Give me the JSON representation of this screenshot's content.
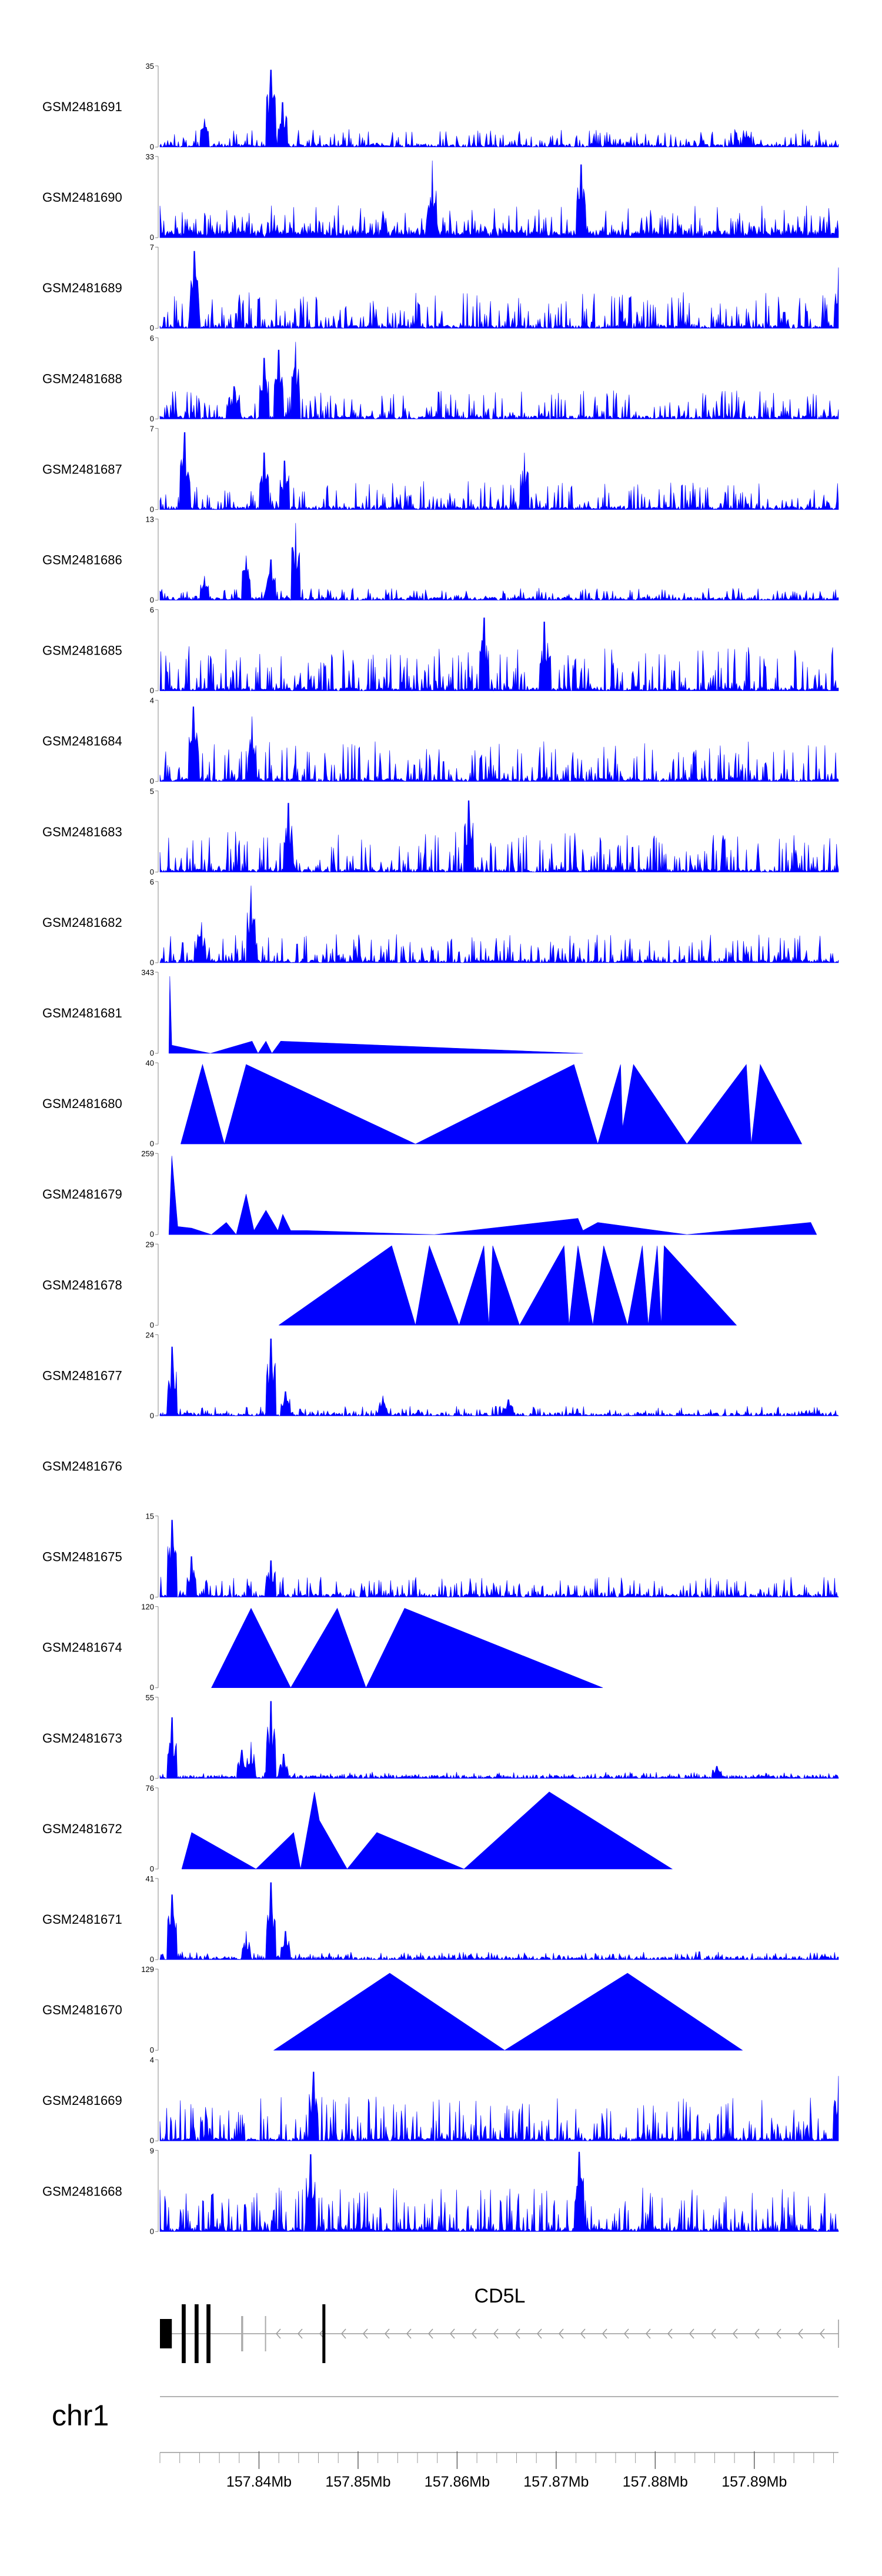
{
  "chart_data": {
    "type": "area",
    "chromosome": "chr1",
    "x_range_mb": [
      157.83,
      157.8985
    ],
    "x_ticks_mb": [
      157.84,
      157.85,
      157.86,
      157.87,
      157.88,
      157.89
    ],
    "x_tick_labels": [
      "157.84Mb",
      "157.85Mb",
      "157.86Mb",
      "157.87Mb",
      "157.88Mb",
      "157.89Mb"
    ],
    "gene": {
      "name": "CD5L",
      "strand": "-",
      "start_mb": 157.83,
      "end_mb": 157.8985,
      "exons_mb": [
        [
          157.83,
          157.8312
        ],
        [
          157.8322,
          157.8326
        ],
        [
          157.8335,
          157.8339
        ],
        [
          157.8347,
          157.8351
        ],
        [
          157.8382,
          157.8384
        ],
        [
          157.8406,
          157.8407
        ],
        [
          157.8464,
          157.8467
        ]
      ]
    },
    "tracks": [
      {
        "name": "GSM2481691",
        "ymax": 35,
        "pattern": "dense",
        "noise": 0.22,
        "peaks": [
          {
            "x": 157.8345,
            "h": 0.35
          },
          {
            "x": 157.8412,
            "h": 0.95
          },
          {
            "x": 157.8424,
            "h": 0.55
          },
          {
            "x": 157.8892,
            "h": 0.2
          }
        ]
      },
      {
        "name": "GSM2481690",
        "ymax": 33,
        "pattern": "sawtooth",
        "noise": 0.28,
        "peaks": [
          {
            "x": 157.8575,
            "h": 0.95
          },
          {
            "x": 157.8725,
            "h": 0.9
          }
        ]
      },
      {
        "name": "GSM2481689",
        "ymax": 7,
        "pattern": "dense",
        "noise": 0.45,
        "peaks": [
          {
            "x": 157.8335,
            "h": 0.95
          },
          {
            "x": 157.8985,
            "h": 0.75
          }
        ]
      },
      {
        "name": "GSM2481688",
        "ymax": 6,
        "pattern": "dense",
        "noise": 0.35,
        "peaks": [
          {
            "x": 157.8375,
            "h": 0.4
          },
          {
            "x": 157.8405,
            "h": 0.75
          },
          {
            "x": 157.842,
            "h": 0.85
          },
          {
            "x": 157.8437,
            "h": 0.95
          }
        ]
      },
      {
        "name": "GSM2481687",
        "ymax": 7,
        "pattern": "dense",
        "noise": 0.35,
        "peaks": [
          {
            "x": 157.8325,
            "h": 0.95
          },
          {
            "x": 157.8405,
            "h": 0.7
          },
          {
            "x": 157.8426,
            "h": 0.6
          },
          {
            "x": 157.8668,
            "h": 0.7
          }
        ]
      },
      {
        "name": "GSM2481686",
        "ymax": 13,
        "pattern": "dense",
        "noise": 0.15,
        "peaks": [
          {
            "x": 157.8345,
            "h": 0.3
          },
          {
            "x": 157.8387,
            "h": 0.55
          },
          {
            "x": 157.8412,
            "h": 0.5
          },
          {
            "x": 157.8437,
            "h": 0.95
          }
        ]
      },
      {
        "name": "GSM2481685",
        "ymax": 6,
        "pattern": "dense",
        "noise": 0.55,
        "peaks": [
          {
            "x": 157.8627,
            "h": 0.9
          },
          {
            "x": 157.8688,
            "h": 0.85
          }
        ]
      },
      {
        "name": "GSM2481684",
        "ymax": 4,
        "pattern": "dense",
        "noise": 0.5,
        "peaks": [
          {
            "x": 157.8334,
            "h": 0.92
          },
          {
            "x": 157.8393,
            "h": 0.8
          }
        ]
      },
      {
        "name": "GSM2481683",
        "ymax": 5,
        "pattern": "dense",
        "noise": 0.5,
        "peaks": [
          {
            "x": 157.843,
            "h": 0.85
          },
          {
            "x": 157.8612,
            "h": 0.88
          }
        ]
      },
      {
        "name": "GSM2481682",
        "ymax": 6,
        "pattern": "dense",
        "noise": 0.35,
        "peaks": [
          {
            "x": 157.8392,
            "h": 0.95
          },
          {
            "x": 157.8342,
            "h": 0.5
          }
        ]
      },
      {
        "name": "GSM2481681",
        "ymax": 343,
        "pattern": "sparse",
        "points": [
          [
            157.8309,
            0
          ],
          [
            157.831,
            0.95
          ],
          [
            157.8312,
            0.1
          ],
          [
            157.8351,
            0
          ],
          [
            157.8393,
            0.15
          ],
          [
            157.8399,
            0
          ],
          [
            157.8407,
            0.15
          ],
          [
            157.8413,
            0
          ],
          [
            157.8422,
            0.15
          ],
          [
            157.8727,
            0
          ]
        ]
      },
      {
        "name": "GSM2481680",
        "ymax": 40,
        "pattern": "sparse",
        "points": [
          [
            157.8321,
            0
          ],
          [
            157.8343,
            0.98
          ],
          [
            157.8365,
            0
          ],
          [
            157.8387,
            0.98
          ],
          [
            157.8558,
            0
          ],
          [
            157.8718,
            0.98
          ],
          [
            157.8742,
            0
          ],
          [
            157.8765,
            0.98
          ],
          [
            157.8767,
            0.2
          ],
          [
            157.8778,
            0.98
          ],
          [
            157.8832,
            0
          ],
          [
            157.8892,
            0.98
          ],
          [
            157.8897,
            0
          ],
          [
            157.8906,
            0.98
          ],
          [
            157.8948,
            0
          ]
        ]
      },
      {
        "name": "GSM2481679",
        "ymax": 259,
        "pattern": "sparse",
        "points": [
          [
            157.8309,
            0
          ],
          [
            157.8312,
            0.97
          ],
          [
            157.8318,
            0.1
          ],
          [
            157.8332,
            0.08
          ],
          [
            157.8352,
            0
          ],
          [
            157.8367,
            0.15
          ],
          [
            157.8377,
            0
          ],
          [
            157.8387,
            0.5
          ],
          [
            157.8395,
            0.05
          ],
          [
            157.8407,
            0.3
          ],
          [
            157.8419,
            0.05
          ],
          [
            157.8424,
            0.25
          ],
          [
            157.8432,
            0.05
          ],
          [
            157.8448,
            0.05
          ],
          [
            157.8577,
            0
          ],
          [
            157.8722,
            0.2
          ],
          [
            157.8727,
            0.05
          ],
          [
            157.8742,
            0.15
          ],
          [
            157.8832,
            0
          ],
          [
            157.8957,
            0.15
          ],
          [
            157.8963,
            0
          ]
        ]
      },
      {
        "name": "GSM2481678",
        "ymax": 29,
        "pattern": "sparse",
        "points": [
          [
            157.842,
            0
          ],
          [
            157.8534,
            0.98
          ],
          [
            157.8558,
            0
          ],
          [
            157.8572,
            0.98
          ],
          [
            157.8602,
            0
          ],
          [
            157.8627,
            0.98
          ],
          [
            157.8632,
            0
          ],
          [
            157.8636,
            0.98
          ],
          [
            157.8663,
            0
          ],
          [
            157.8708,
            0.98
          ],
          [
            157.8713,
            0
          ],
          [
            157.8722,
            0.98
          ],
          [
            157.8737,
            0
          ],
          [
            157.8748,
            0.98
          ],
          [
            157.8772,
            0
          ],
          [
            157.8787,
            0.98
          ],
          [
            157.8793,
            0
          ],
          [
            157.8802,
            0.98
          ],
          [
            157.8806,
            0
          ],
          [
            157.8809,
            0.98
          ],
          [
            157.8882,
            0
          ]
        ]
      },
      {
        "name": "GSM2481677",
        "ymax": 24,
        "pattern": "dense",
        "noise": 0.12,
        "peaks": [
          {
            "x": 157.8312,
            "h": 0.85
          },
          {
            "x": 157.8412,
            "h": 0.95
          },
          {
            "x": 157.8427,
            "h": 0.3
          },
          {
            "x": 157.8525,
            "h": 0.25
          },
          {
            "x": 157.8652,
            "h": 0.2
          }
        ]
      },
      {
        "name": "GSM2481676",
        "ymax": null,
        "pattern": "empty"
      },
      {
        "name": "GSM2481675",
        "ymax": 15,
        "pattern": "dense",
        "noise": 0.25,
        "peaks": [
          {
            "x": 157.8312,
            "h": 0.95
          },
          {
            "x": 157.8332,
            "h": 0.5
          },
          {
            "x": 157.8412,
            "h": 0.45
          }
        ]
      },
      {
        "name": "GSM2481674",
        "ymax": 120,
        "pattern": "sparse",
        "points": [
          [
            157.8352,
            0
          ],
          [
            157.8392,
            0.98
          ],
          [
            157.8432,
            0
          ],
          [
            157.8479,
            0.98
          ],
          [
            157.8508,
            0
          ],
          [
            157.8547,
            0.98
          ],
          [
            157.8747,
            0
          ]
        ]
      },
      {
        "name": "GSM2481673",
        "ymax": 55,
        "pattern": "dense",
        "noise": 0.08,
        "peaks": [
          {
            "x": 157.8312,
            "h": 0.75
          },
          {
            "x": 157.8383,
            "h": 0.35
          },
          {
            "x": 157.8392,
            "h": 0.45
          },
          {
            "x": 157.8412,
            "h": 0.95
          },
          {
            "x": 157.8425,
            "h": 0.3
          },
          {
            "x": 157.8862,
            "h": 0.15
          }
        ]
      },
      {
        "name": "GSM2481672",
        "ymax": 76,
        "pattern": "sparse",
        "points": [
          [
            157.8322,
            0
          ],
          [
            157.8332,
            0.45
          ],
          [
            157.8397,
            0
          ],
          [
            157.8435,
            0.45
          ],
          [
            157.8442,
            0
          ],
          [
            157.8456,
            0.95
          ],
          [
            157.8461,
            0.6
          ],
          [
            157.8489,
            0
          ],
          [
            157.8519,
            0.45
          ],
          [
            157.8607,
            0
          ],
          [
            157.8693,
            0.95
          ],
          [
            157.8817,
            0
          ]
        ]
      },
      {
        "name": "GSM2481671",
        "ymax": 41,
        "pattern": "dense",
        "noise": 0.1,
        "peaks": [
          {
            "x": 157.8312,
            "h": 0.8
          },
          {
            "x": 157.8387,
            "h": 0.35
          },
          {
            "x": 157.8412,
            "h": 0.95
          },
          {
            "x": 157.8427,
            "h": 0.35
          }
        ]
      },
      {
        "name": "GSM2481670",
        "ymax": 129,
        "pattern": "sparse",
        "points": [
          [
            157.8415,
            0
          ],
          [
            157.8532,
            0.95
          ],
          [
            157.8648,
            0
          ],
          [
            157.8772,
            0.95
          ],
          [
            157.8888,
            0
          ]
        ]
      },
      {
        "name": "GSM2481669",
        "ymax": 4,
        "pattern": "dense",
        "noise": 0.55,
        "peaks": [
          {
            "x": 157.8455,
            "h": 0.85
          },
          {
            "x": 157.8985,
            "h": 0.8
          }
        ]
      },
      {
        "name": "GSM2481668",
        "ymax": 9,
        "pattern": "dense",
        "noise": 0.55,
        "peaks": [
          {
            "x": 157.8452,
            "h": 0.95
          },
          {
            "x": 157.8723,
            "h": 0.98
          }
        ]
      }
    ]
  }
}
